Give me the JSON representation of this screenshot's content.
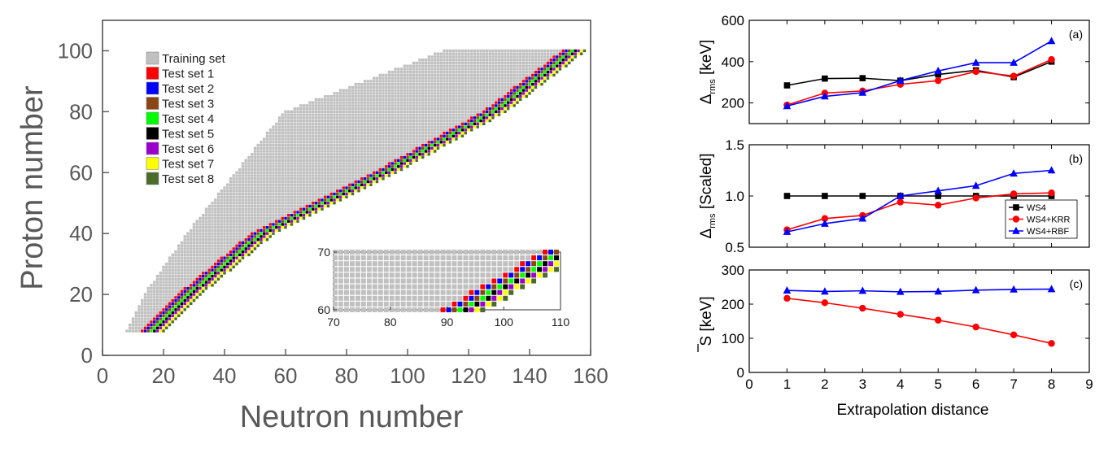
{
  "chart_data": [
    {
      "type": "heatmap",
      "xlabel": "Neutron number",
      "ylabel": "Proton number",
      "xlim": [
        0,
        160
      ],
      "ylim": [
        0,
        110
      ],
      "xticks": [
        "0",
        "20",
        "40",
        "60",
        "80",
        "100",
        "120",
        "140",
        "160"
      ],
      "yticks": [
        "0",
        "20",
        "40",
        "60",
        "80",
        "100"
      ],
      "legend": [
        {
          "label": "Training set",
          "color": "#c0c0c0"
        },
        {
          "label": "Test set 1",
          "color": "#ff0000"
        },
        {
          "label": "Test set 2",
          "color": "#0000ff"
        },
        {
          "label": "Test set 3",
          "color": "#8b4513"
        },
        {
          "label": "Test set 4",
          "color": "#00ff00"
        },
        {
          "label": "Test set 5",
          "color": "#000000"
        },
        {
          "label": "Test set 6",
          "color": "#9900cc"
        },
        {
          "label": "Test set 7",
          "color": "#ffff00"
        },
        {
          "label": "Test set 8",
          "color": "#4a6b2a"
        }
      ],
      "band": {
        "z_range": [
          8,
          100
        ],
        "n_min_at_z": [
          [
            8,
            8
          ],
          [
            20,
            14
          ],
          [
            40,
            28
          ],
          [
            60,
            44
          ],
          [
            80,
            60
          ],
          [
            100,
            112
          ]
        ],
        "n_drip_at_z": [
          [
            8,
            12
          ],
          [
            20,
            24
          ],
          [
            40,
            48
          ],
          [
            60,
            88
          ],
          [
            80,
            124
          ],
          [
            100,
            150
          ]
        ],
        "test_sets_beyond_drip": 8
      },
      "inset": {
        "xlim": [
          70,
          110
        ],
        "ylim": [
          60,
          70
        ],
        "xticks": [
          "70",
          "80",
          "90",
          "100",
          "110"
        ],
        "yticks": [
          "60",
          "70"
        ]
      }
    },
    {
      "type": "line",
      "panel": "(a)",
      "ylabel_main": "Δ",
      "ylabel_sub": "rms",
      "ylabel_unit": "[keV]",
      "ylim": [
        100,
        600
      ],
      "yticks": [
        "200",
        "400",
        "600"
      ],
      "x": [
        1,
        2,
        3,
        4,
        5,
        6,
        7,
        8
      ],
      "series": [
        {
          "name": "WS4",
          "color": "#000000",
          "marker": "square",
          "values": [
            285,
            318,
            320,
            308,
            338,
            358,
            325,
            400
          ]
        },
        {
          "name": "WS4+KRR",
          "color": "#ff0000",
          "marker": "circle",
          "values": [
            190,
            248,
            258,
            290,
            308,
            352,
            330,
            410
          ]
        },
        {
          "name": "WS4+RBF",
          "color": "#0000ff",
          "marker": "triangle",
          "values": [
            185,
            232,
            250,
            308,
            355,
            395,
            395,
            500
          ]
        }
      ]
    },
    {
      "type": "line",
      "panel": "(b)",
      "ylabel_main": "Δ",
      "ylabel_sub": "rms",
      "ylabel_unit": "[Scaled]",
      "ylim": [
        0.5,
        1.5
      ],
      "yticks": [
        "0.5",
        "1.0",
        "1.5"
      ],
      "legend": [
        "WS4",
        "WS4+KRR",
        "WS4+RBF"
      ],
      "x": [
        1,
        2,
        3,
        4,
        5,
        6,
        7,
        8
      ],
      "series": [
        {
          "name": "WS4",
          "color": "#000000",
          "marker": "square",
          "values": [
            1.0,
            1.0,
            1.0,
            1.0,
            1.0,
            1.0,
            1.0,
            1.0
          ]
        },
        {
          "name": "WS4+KRR",
          "color": "#ff0000",
          "marker": "circle",
          "values": [
            0.67,
            0.78,
            0.81,
            0.94,
            0.91,
            0.98,
            1.02,
            1.03
          ]
        },
        {
          "name": "WS4+RBF",
          "color": "#0000ff",
          "marker": "triangle",
          "values": [
            0.65,
            0.73,
            0.78,
            1.0,
            1.05,
            1.1,
            1.22,
            1.25
          ]
        }
      ]
    },
    {
      "type": "line",
      "panel": "(c)",
      "ylabel_main": "S",
      "ylabel_unit": "[keV]",
      "ylim": [
        0,
        300
      ],
      "yticks": [
        "0",
        "100",
        "200",
        "300"
      ],
      "xlim": [
        0,
        9
      ],
      "xticks": [
        "0",
        "1",
        "2",
        "3",
        "4",
        "5",
        "6",
        "7",
        "8",
        "9"
      ],
      "xlabel": "Extrapolation distance",
      "x": [
        1,
        2,
        3,
        4,
        5,
        6,
        7,
        8
      ],
      "series": [
        {
          "name": "WS4+KRR",
          "color": "#ff0000",
          "marker": "circle",
          "values": [
            217,
            204,
            188,
            170,
            153,
            133,
            110,
            85
          ]
        },
        {
          "name": "WS4+RBF",
          "color": "#0000ff",
          "marker": "triangle",
          "values": [
            240,
            237,
            239,
            236,
            237,
            241,
            243,
            244
          ]
        }
      ]
    }
  ]
}
